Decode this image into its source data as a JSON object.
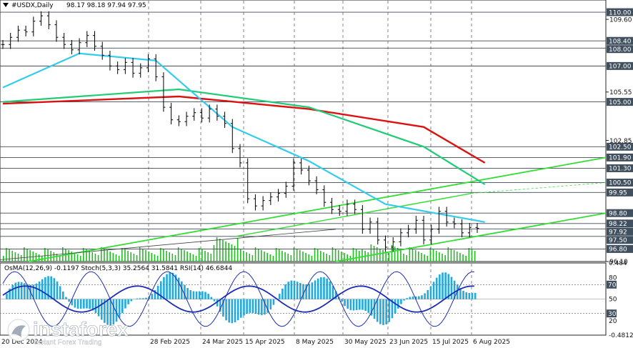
{
  "header": {
    "arrow_icon": "triangle-down-icon",
    "symbol": "#USDX,Daily",
    "ohlc": "98.17 98.18 97.94 97.95"
  },
  "colors": {
    "ema_fast": "#33ccee",
    "ema_mid": "#22cc77",
    "ema_slow": "#dd1111",
    "channel": "#33dd33",
    "tag": "#41505f",
    "volume": "#22bb22",
    "osma": "#22aadd",
    "stoch_main": "#1b2db4",
    "rsi": "#cc3344"
  },
  "price_axis": {
    "levels": [
      "110.00",
      "108.40",
      "108.00",
      "107.00",
      "105.00",
      "102.50",
      "101.90",
      "101.30",
      "100.50",
      "99.95",
      "98.80",
      "98.22",
      "97.92",
      "97.50",
      "96.80"
    ],
    "plain": [
      "109.60",
      "105.55",
      "102.85",
      "96.10"
    ]
  },
  "indicator": {
    "label": "OsMA(12,26,9) -0.1197  Stoch(5,3,3) 35.2564 31.5841  RSI(14) 46.6844",
    "axis": [
      "0.484",
      "80",
      "70",
      "50",
      "30",
      "20",
      "-0.4812"
    ]
  },
  "time_axis": [
    "20 Dec 2024",
    "28 Feb 2025",
    "24 Mar 2025",
    "15 Apr 2025",
    "8 May 2025",
    "30 May 2025",
    "23 Jun 2025",
    "15 Jul 2025",
    "6 Aug 2025"
  ],
  "watermark": {
    "brand": "instaforex",
    "tagline": "Instant Forex Trading"
  },
  "chart_data": {
    "type": "candlestick",
    "approx_closes": [
      108.2,
      108.6,
      109.0,
      108.9,
      109.5,
      109.8,
      109.3,
      108.6,
      108.2,
      107.9,
      108.3,
      108.7,
      108.1,
      107.6,
      107.0,
      106.8,
      107.2,
      106.6,
      106.9,
      107.4,
      106.4,
      104.7,
      104.0,
      103.9,
      104.2,
      104.4,
      104.1,
      104.6,
      104.2,
      103.8,
      102.4,
      101.6,
      99.6,
      99.2,
      99.5,
      99.7,
      99.9,
      100.3,
      101.6,
      101.2,
      100.6,
      100.1,
      99.4,
      99.0,
      98.9,
      99.3,
      99.0,
      97.9,
      98.3,
      97.3,
      96.9,
      97.2,
      97.7,
      97.9,
      98.4,
      97.3,
      97.9,
      98.9,
      98.3,
      98.2,
      97.7,
      98.0,
      97.95
    ],
    "x_range": [
      "20 Dec 2024",
      "6 Aug 2025"
    ],
    "y_range": [
      96.1,
      110.6
    ],
    "ema_slow_points": [
      [
        0,
        104.9
      ],
      [
        23,
        105.3
      ],
      [
        40,
        104.6
      ],
      [
        55,
        103.6
      ],
      [
        63,
        101.6
      ]
    ],
    "ema_mid_points": [
      [
        0,
        105.0
      ],
      [
        23,
        105.7
      ],
      [
        40,
        104.7
      ],
      [
        55,
        102.5
      ],
      [
        63,
        100.4
      ]
    ],
    "ema_fast_points": [
      [
        0,
        105.8
      ],
      [
        10,
        107.7
      ],
      [
        20,
        107.3
      ],
      [
        30,
        103.6
      ],
      [
        40,
        101.7
      ],
      [
        50,
        99.3
      ],
      [
        63,
        98.3
      ]
    ]
  }
}
